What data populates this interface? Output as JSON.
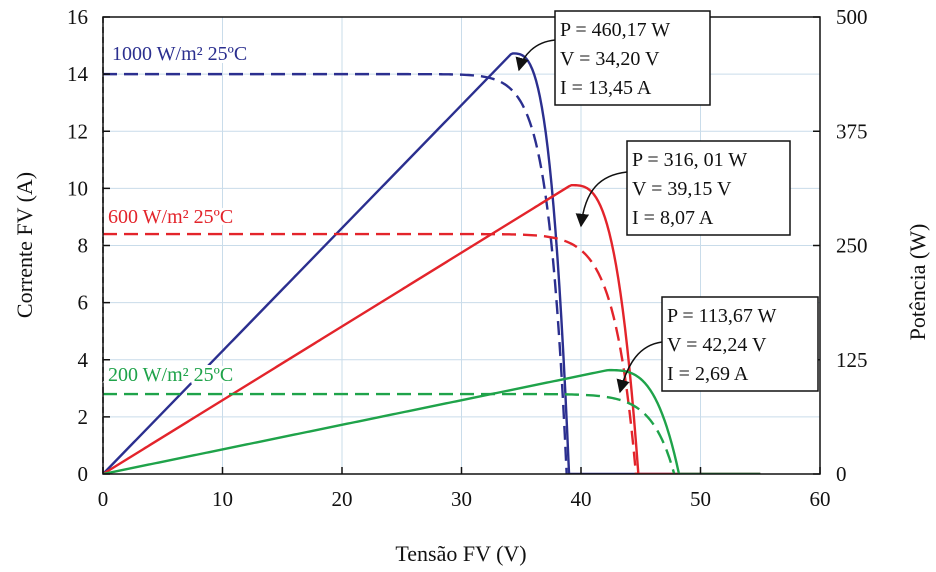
{
  "chart_data": {
    "type": "line",
    "xlabel": "Tensão FV (V)",
    "ylabel": "Corrente FV (A)",
    "ylabel_right": "Potência (W)",
    "xlim": [
      0,
      60
    ],
    "ylim": [
      0,
      16
    ],
    "ylim_right": [
      0,
      500
    ],
    "x_ticks": [
      0,
      10,
      20,
      30,
      40,
      50,
      60
    ],
    "y_ticks": [
      0,
      2,
      4,
      6,
      8,
      10,
      12,
      14,
      16
    ],
    "y_right_ticks": [
      0,
      125,
      250,
      375,
      500
    ],
    "grid": true,
    "curves": [
      {
        "label": "1000 W/m² 25ºC",
        "color": "#2b2f8f",
        "isc": 14.0,
        "voc": 38.8,
        "vmp": 34.2,
        "imp": 13.45,
        "pmp": 460.17,
        "power_zero_v": 39.0,
        "annotation": [
          "P = 460,17 W",
          "V = 34,20 V",
          "I = 13,45 A"
        ]
      },
      {
        "label": "600 W/m² 25ºC",
        "color": "#e3242b",
        "isc": 8.4,
        "voc": 44.6,
        "vmp": 39.15,
        "imp": 8.07,
        "pmp": 316.01,
        "power_zero_v": 44.8,
        "annotation": [
          "P = 316, 01 W",
          "V = 39,15 V",
          "I = 8,07 A"
        ]
      },
      {
        "label": "200 W/m² 25ºC",
        "color": "#1fa34a",
        "isc": 2.8,
        "voc": 47.8,
        "vmp": 42.24,
        "imp": 2.69,
        "pmp": 113.67,
        "power_zero_v": 48.2,
        "annotation": [
          "P = 113,67 W",
          "V = 42,24 V",
          "I = 2,69 A"
        ]
      }
    ]
  }
}
